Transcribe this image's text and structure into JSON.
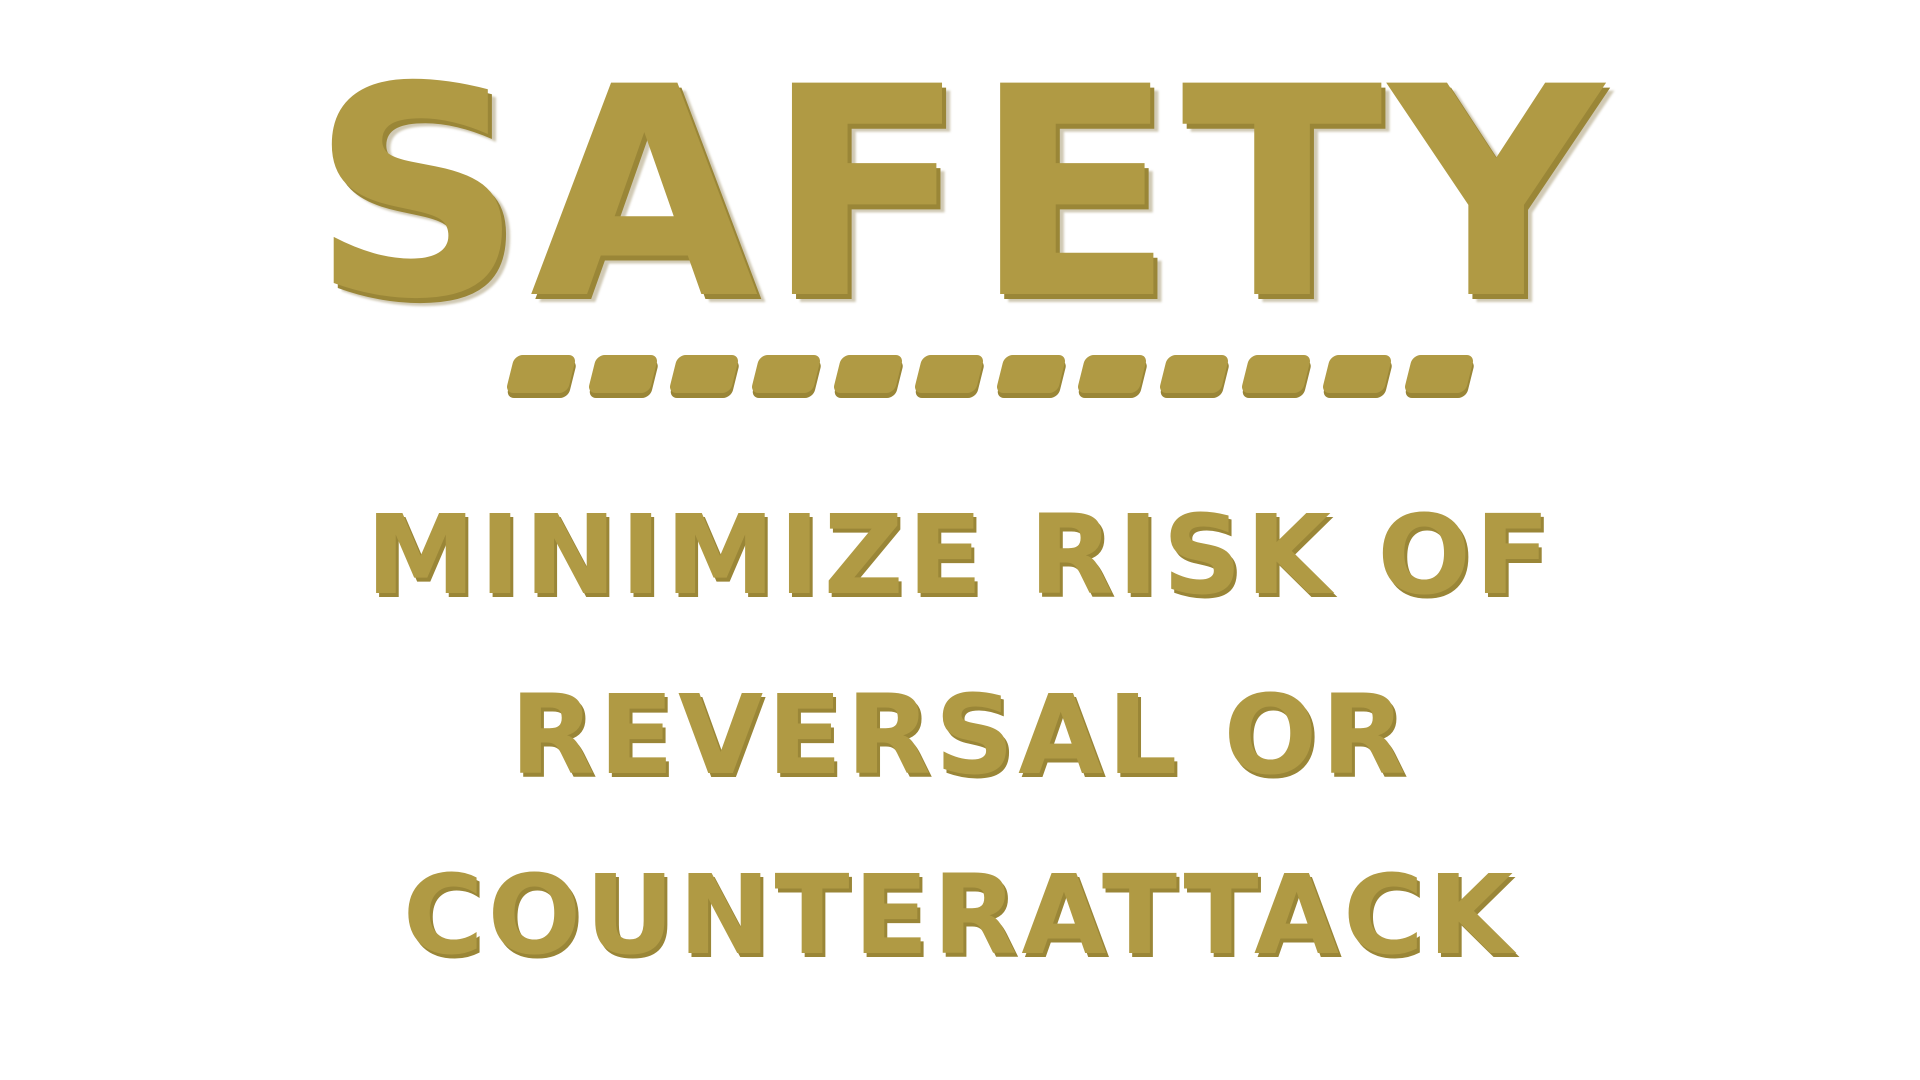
{
  "title": "SAFETY",
  "lines": [
    "minimize risk of",
    "reversal or",
    "counterattack"
  ],
  "colors": {
    "text": "#b09a44",
    "shadow": "#9a8637",
    "background": "#ffffff"
  }
}
